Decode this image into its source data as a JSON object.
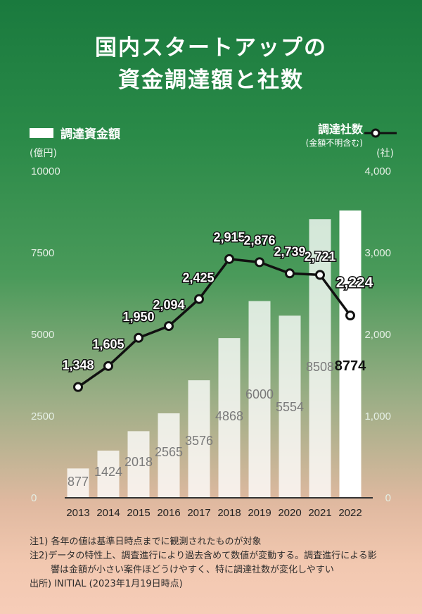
{
  "title_line1": "国内スタートアップの",
  "title_line2": "資金調達額と社数",
  "legend": {
    "bars_label": "調達資金額",
    "line_label": "調達社数",
    "line_sublabel": "(金額不明含む)"
  },
  "units": {
    "left": "(億円)",
    "right": "(社)"
  },
  "notes": {
    "note1": "注1) 各年の値は基準日時点までに観測されたものが対象",
    "note2a": "注2)データの特性上、調査進行により過去含めて数値が変動する。調査進行による影",
    "note2b": "響は金額が小さい案件ほどうけやすく、特に調達社数が変化しやすい",
    "source": "出所) INITIAL (2023年1月19日時点)"
  },
  "colors": {
    "bar": "#ffffff",
    "bar_highlight": "#ffffff",
    "line": "#111111",
    "bar_label": "#7a7a7a"
  },
  "chart_data": {
    "type": "bar",
    "categories": [
      "2013",
      "2014",
      "2015",
      "2016",
      "2017",
      "2018",
      "2019",
      "2020",
      "2021",
      "2022"
    ],
    "series": [
      {
        "name": "調達資金額",
        "type": "bar",
        "axis": "left",
        "values": [
          877,
          1424,
          2018,
          2565,
          3576,
          4868,
          6000,
          5554,
          8508,
          8774
        ]
      },
      {
        "name": "調達社数",
        "type": "line",
        "axis": "right",
        "values": [
          1348,
          1605,
          1950,
          2094,
          2425,
          2915,
          2876,
          2739,
          2721,
          2224
        ],
        "labels": [
          "1,348",
          "1,605",
          "1,950",
          "2,094",
          "2,425",
          "2,915",
          "2,876",
          "2,739",
          "2,721",
          "2,224"
        ]
      }
    ],
    "left_axis": {
      "ylim": [
        0,
        10000
      ],
      "ticks": [
        "0",
        "2500",
        "5000",
        "7500",
        "10000"
      ]
    },
    "right_axis": {
      "ylim": [
        0,
        4000
      ],
      "ticks": [
        "0",
        "1,000",
        "2,000",
        "3,000",
        "4,000"
      ]
    },
    "grid": false,
    "legend_position": "top"
  }
}
